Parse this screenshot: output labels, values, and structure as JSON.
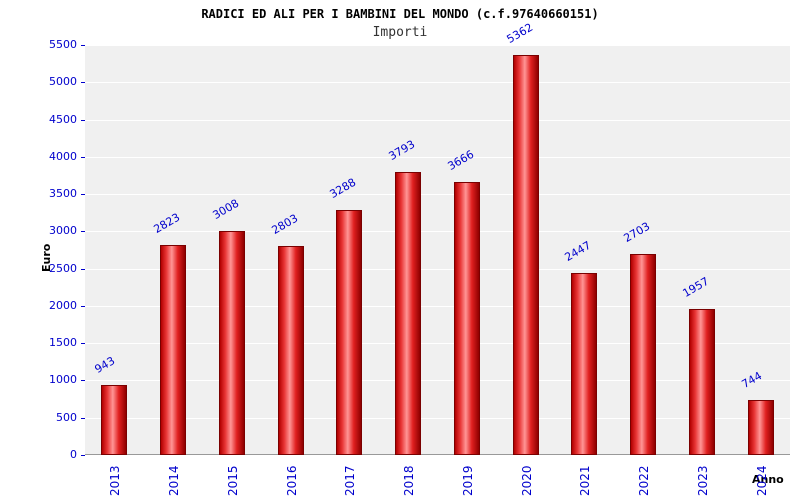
{
  "chart_data": {
    "type": "bar",
    "title": "RADICI ED ALI PER I BAMBINI DEL MONDO (c.f.97640660151)",
    "subtitle": "Importi",
    "xlabel": "Anno",
    "ylabel": "Euro",
    "categories": [
      "2013",
      "2014",
      "2015",
      "2016",
      "2017",
      "2018",
      "2019",
      "2020",
      "2021",
      "2022",
      "2023",
      "2024"
    ],
    "values": [
      943,
      2823,
      3008,
      2803,
      3288,
      3793,
      3666,
      5362,
      2447,
      2703,
      1957,
      744
    ],
    "ylim": [
      0,
      5500
    ],
    "y_ticks": [
      0,
      500,
      1000,
      1500,
      2000,
      2500,
      3000,
      3500,
      4000,
      4500,
      5000,
      5500
    ],
    "grid": true,
    "legend": "none",
    "colors": {
      "bar_main": "#cc0000",
      "bar_highlight": "#ff9595",
      "bar_border": "#7a0000",
      "axis_label_blue": "#0000cc",
      "plot_background": "#f0f0f0",
      "grid_line": "#ffffff",
      "title_color": "#000000",
      "subtitle_color": "#333333"
    }
  }
}
